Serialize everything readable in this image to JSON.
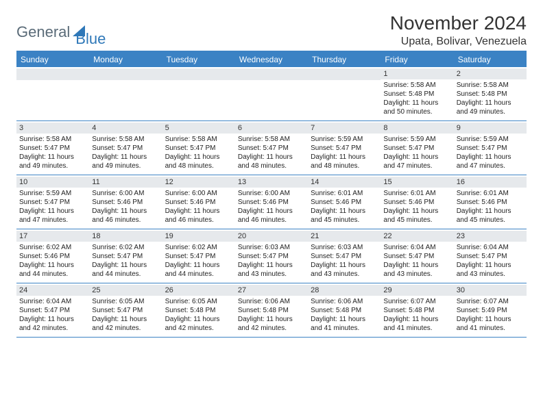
{
  "logo": {
    "text1": "General",
    "text2": "Blue"
  },
  "title": "November 2024",
  "location": "Upata, Bolivar, Venezuela",
  "colors": {
    "header_bg": "#3b82c4",
    "daynum_bg": "#e6e9ec",
    "border": "#3b82c4"
  },
  "weekdays": [
    "Sunday",
    "Monday",
    "Tuesday",
    "Wednesday",
    "Thursday",
    "Friday",
    "Saturday"
  ],
  "weeks": [
    [
      null,
      null,
      null,
      null,
      null,
      {
        "n": "1",
        "rise": "5:58 AM",
        "set": "5:48 PM",
        "h": "11",
        "m": "50"
      },
      {
        "n": "2",
        "rise": "5:58 AM",
        "set": "5:48 PM",
        "h": "11",
        "m": "49"
      }
    ],
    [
      {
        "n": "3",
        "rise": "5:58 AM",
        "set": "5:47 PM",
        "h": "11",
        "m": "49"
      },
      {
        "n": "4",
        "rise": "5:58 AM",
        "set": "5:47 PM",
        "h": "11",
        "m": "49"
      },
      {
        "n": "5",
        "rise": "5:58 AM",
        "set": "5:47 PM",
        "h": "11",
        "m": "48"
      },
      {
        "n": "6",
        "rise": "5:58 AM",
        "set": "5:47 PM",
        "h": "11",
        "m": "48"
      },
      {
        "n": "7",
        "rise": "5:59 AM",
        "set": "5:47 PM",
        "h": "11",
        "m": "48"
      },
      {
        "n": "8",
        "rise": "5:59 AM",
        "set": "5:47 PM",
        "h": "11",
        "m": "47"
      },
      {
        "n": "9",
        "rise": "5:59 AM",
        "set": "5:47 PM",
        "h": "11",
        "m": "47"
      }
    ],
    [
      {
        "n": "10",
        "rise": "5:59 AM",
        "set": "5:47 PM",
        "h": "11",
        "m": "47"
      },
      {
        "n": "11",
        "rise": "6:00 AM",
        "set": "5:46 PM",
        "h": "11",
        "m": "46"
      },
      {
        "n": "12",
        "rise": "6:00 AM",
        "set": "5:46 PM",
        "h": "11",
        "m": "46"
      },
      {
        "n": "13",
        "rise": "6:00 AM",
        "set": "5:46 PM",
        "h": "11",
        "m": "46"
      },
      {
        "n": "14",
        "rise": "6:01 AM",
        "set": "5:46 PM",
        "h": "11",
        "m": "45"
      },
      {
        "n": "15",
        "rise": "6:01 AM",
        "set": "5:46 PM",
        "h": "11",
        "m": "45"
      },
      {
        "n": "16",
        "rise": "6:01 AM",
        "set": "5:46 PM",
        "h": "11",
        "m": "45"
      }
    ],
    [
      {
        "n": "17",
        "rise": "6:02 AM",
        "set": "5:46 PM",
        "h": "11",
        "m": "44"
      },
      {
        "n": "18",
        "rise": "6:02 AM",
        "set": "5:47 PM",
        "h": "11",
        "m": "44"
      },
      {
        "n": "19",
        "rise": "6:02 AM",
        "set": "5:47 PM",
        "h": "11",
        "m": "44"
      },
      {
        "n": "20",
        "rise": "6:03 AM",
        "set": "5:47 PM",
        "h": "11",
        "m": "43"
      },
      {
        "n": "21",
        "rise": "6:03 AM",
        "set": "5:47 PM",
        "h": "11",
        "m": "43"
      },
      {
        "n": "22",
        "rise": "6:04 AM",
        "set": "5:47 PM",
        "h": "11",
        "m": "43"
      },
      {
        "n": "23",
        "rise": "6:04 AM",
        "set": "5:47 PM",
        "h": "11",
        "m": "43"
      }
    ],
    [
      {
        "n": "24",
        "rise": "6:04 AM",
        "set": "5:47 PM",
        "h": "11",
        "m": "42"
      },
      {
        "n": "25",
        "rise": "6:05 AM",
        "set": "5:47 PM",
        "h": "11",
        "m": "42"
      },
      {
        "n": "26",
        "rise": "6:05 AM",
        "set": "5:48 PM",
        "h": "11",
        "m": "42"
      },
      {
        "n": "27",
        "rise": "6:06 AM",
        "set": "5:48 PM",
        "h": "11",
        "m": "42"
      },
      {
        "n": "28",
        "rise": "6:06 AM",
        "set": "5:48 PM",
        "h": "11",
        "m": "41"
      },
      {
        "n": "29",
        "rise": "6:07 AM",
        "set": "5:48 PM",
        "h": "11",
        "m": "41"
      },
      {
        "n": "30",
        "rise": "6:07 AM",
        "set": "5:49 PM",
        "h": "11",
        "m": "41"
      }
    ]
  ],
  "labels": {
    "sunrise": "Sunrise:",
    "sunset": "Sunset:",
    "daylight": "Daylight:",
    "hours": "hours",
    "and": "and",
    "minutes": "minutes."
  }
}
